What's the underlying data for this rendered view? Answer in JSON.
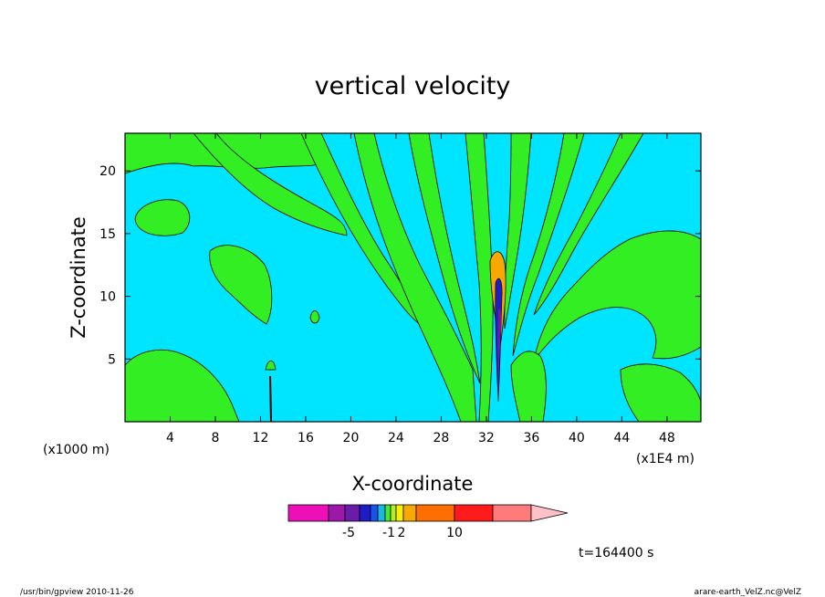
{
  "chart_data": {
    "type": "contour",
    "title": "vertical velocity",
    "xlabel": "X-coordinate",
    "ylabel": "Z-coordinate",
    "x_units": "(x1E4 m)",
    "y_units": "(x1000 m)",
    "xlim": [
      0,
      51
    ],
    "ylim": [
      0,
      23
    ],
    "x_ticks": [
      4,
      8,
      12,
      16,
      20,
      24,
      28,
      32,
      36,
      40,
      44,
      48
    ],
    "y_ticks": [
      5,
      10,
      15,
      20
    ],
    "background_color": "#00e5ff",
    "positive_color": "#33ee22",
    "colorbar": {
      "colors": [
        "#ee0fb9",
        "#9c18a8",
        "#6a1ca8",
        "#1e1cc4",
        "#1a52ee",
        "#16b8e0",
        "#46e83a",
        "#b6ee22",
        "#f8f000",
        "#f8a800",
        "#ff6e00",
        "#ff1b1b",
        "#ff7a7a",
        "#ffc0c8"
      ],
      "tick_labels": [
        "-5",
        "-1",
        "2",
        "10"
      ],
      "extend": "right"
    },
    "time_label": "t=164400 s",
    "footer_left": "/usr/bin/gpview   2010-11-26",
    "footer_right": "arare-earth_VelZ.nc@VelZ"
  }
}
